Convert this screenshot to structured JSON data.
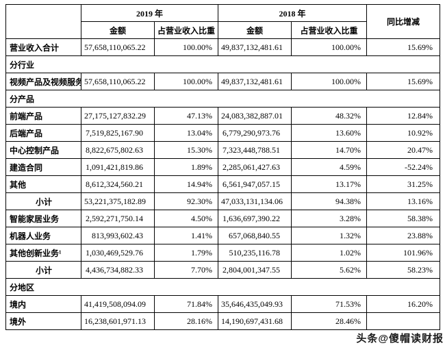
{
  "table": {
    "header": {
      "year_2019": "2019 年",
      "year_2018": "2018 年",
      "yoy": "同比增减",
      "amount": "金额",
      "ratio": "占营业收入比重"
    },
    "rows": [
      {
        "type": "data",
        "label": "营业收入合计",
        "a2019": "57,658,110,065.22",
        "r2019": "100.00%",
        "a2018": "49,837,132,481.61",
        "r2018": "100.00%",
        "yoy": "15.69%"
      },
      {
        "type": "section",
        "label": "分行业"
      },
      {
        "type": "data",
        "label": "视频产品及视频服务",
        "a2019": "57,658,110,065.22",
        "r2019": "100.00%",
        "a2018": "49,837,132,481.61",
        "r2018": "100.00%",
        "yoy": "15.69%"
      },
      {
        "type": "section",
        "label": "分产品"
      },
      {
        "type": "data",
        "label": "前端产品",
        "a2019": "27,175,127,832.29",
        "r2019": "47.13%",
        "a2018": "24,083,382,887.01",
        "r2018": "48.32%",
        "yoy": "12.84%"
      },
      {
        "type": "data",
        "label": "后端产品",
        "a2019": "7,519,825,167.90",
        "r2019": "13.04%",
        "a2018": "6,779,290,973.76",
        "r2018": "13.60%",
        "yoy": "10.92%"
      },
      {
        "type": "data",
        "label": "中心控制产品",
        "a2019": "8,822,675,802.63",
        "r2019": "15.30%",
        "a2018": "7,323,448,788.51",
        "r2018": "14.70%",
        "yoy": "20.47%"
      },
      {
        "type": "data",
        "label": "建造合同",
        "a2019": "1,091,421,819.86",
        "r2019": "1.89%",
        "a2018": "2,285,061,427.63",
        "r2018": "4.59%",
        "yoy": "-52.24%"
      },
      {
        "type": "data",
        "label": "其他",
        "a2019": "8,612,324,560.21",
        "r2019": "14.94%",
        "a2018": "6,561,947,057.15",
        "r2018": "13.17%",
        "yoy": "31.25%"
      },
      {
        "type": "subtotal",
        "label": "小计",
        "a2019": "53,221,375,182.89",
        "r2019": "92.30%",
        "a2018": "47,033,131,134.06",
        "r2018": "94.38%",
        "yoy": "13.16%"
      },
      {
        "type": "data",
        "label": "智能家居业务",
        "a2019": "2,592,271,750.14",
        "r2019": "4.50%",
        "a2018": "1,636,697,390.22",
        "r2018": "3.28%",
        "yoy": "58.38%"
      },
      {
        "type": "data",
        "label": "机器人业务",
        "a2019": "813,993,602.43",
        "r2019": "1.41%",
        "a2018": "657,068,840.55",
        "r2018": "1.32%",
        "yoy": "23.88%"
      },
      {
        "type": "data",
        "label": "其他创新业务¹",
        "a2019": "1,030,469,529.76",
        "r2019": "1.79%",
        "a2018": "510,235,116.78",
        "r2018": "1.02%",
        "yoy": "101.96%"
      },
      {
        "type": "subtotal",
        "label": "小计",
        "a2019": "4,436,734,882.33",
        "r2019": "7.70%",
        "a2018": "2,804,001,347.55",
        "r2018": "5.62%",
        "yoy": "58.23%"
      },
      {
        "type": "section",
        "label": "分地区"
      },
      {
        "type": "data",
        "label": "境内",
        "a2019": "41,419,508,094.09",
        "r2019": "71.84%",
        "a2018": "35,646,435,049.93",
        "r2018": "71.53%",
        "yoy": "16.20%"
      },
      {
        "type": "data",
        "label": "境外",
        "a2019": "16,238,601,971.13",
        "r2019": "28.16%",
        "a2018": "14,190,697,431.68",
        "r2018": "28.46%",
        "yoy": ""
      }
    ]
  },
  "watermark": "头条@傻帽读财报"
}
